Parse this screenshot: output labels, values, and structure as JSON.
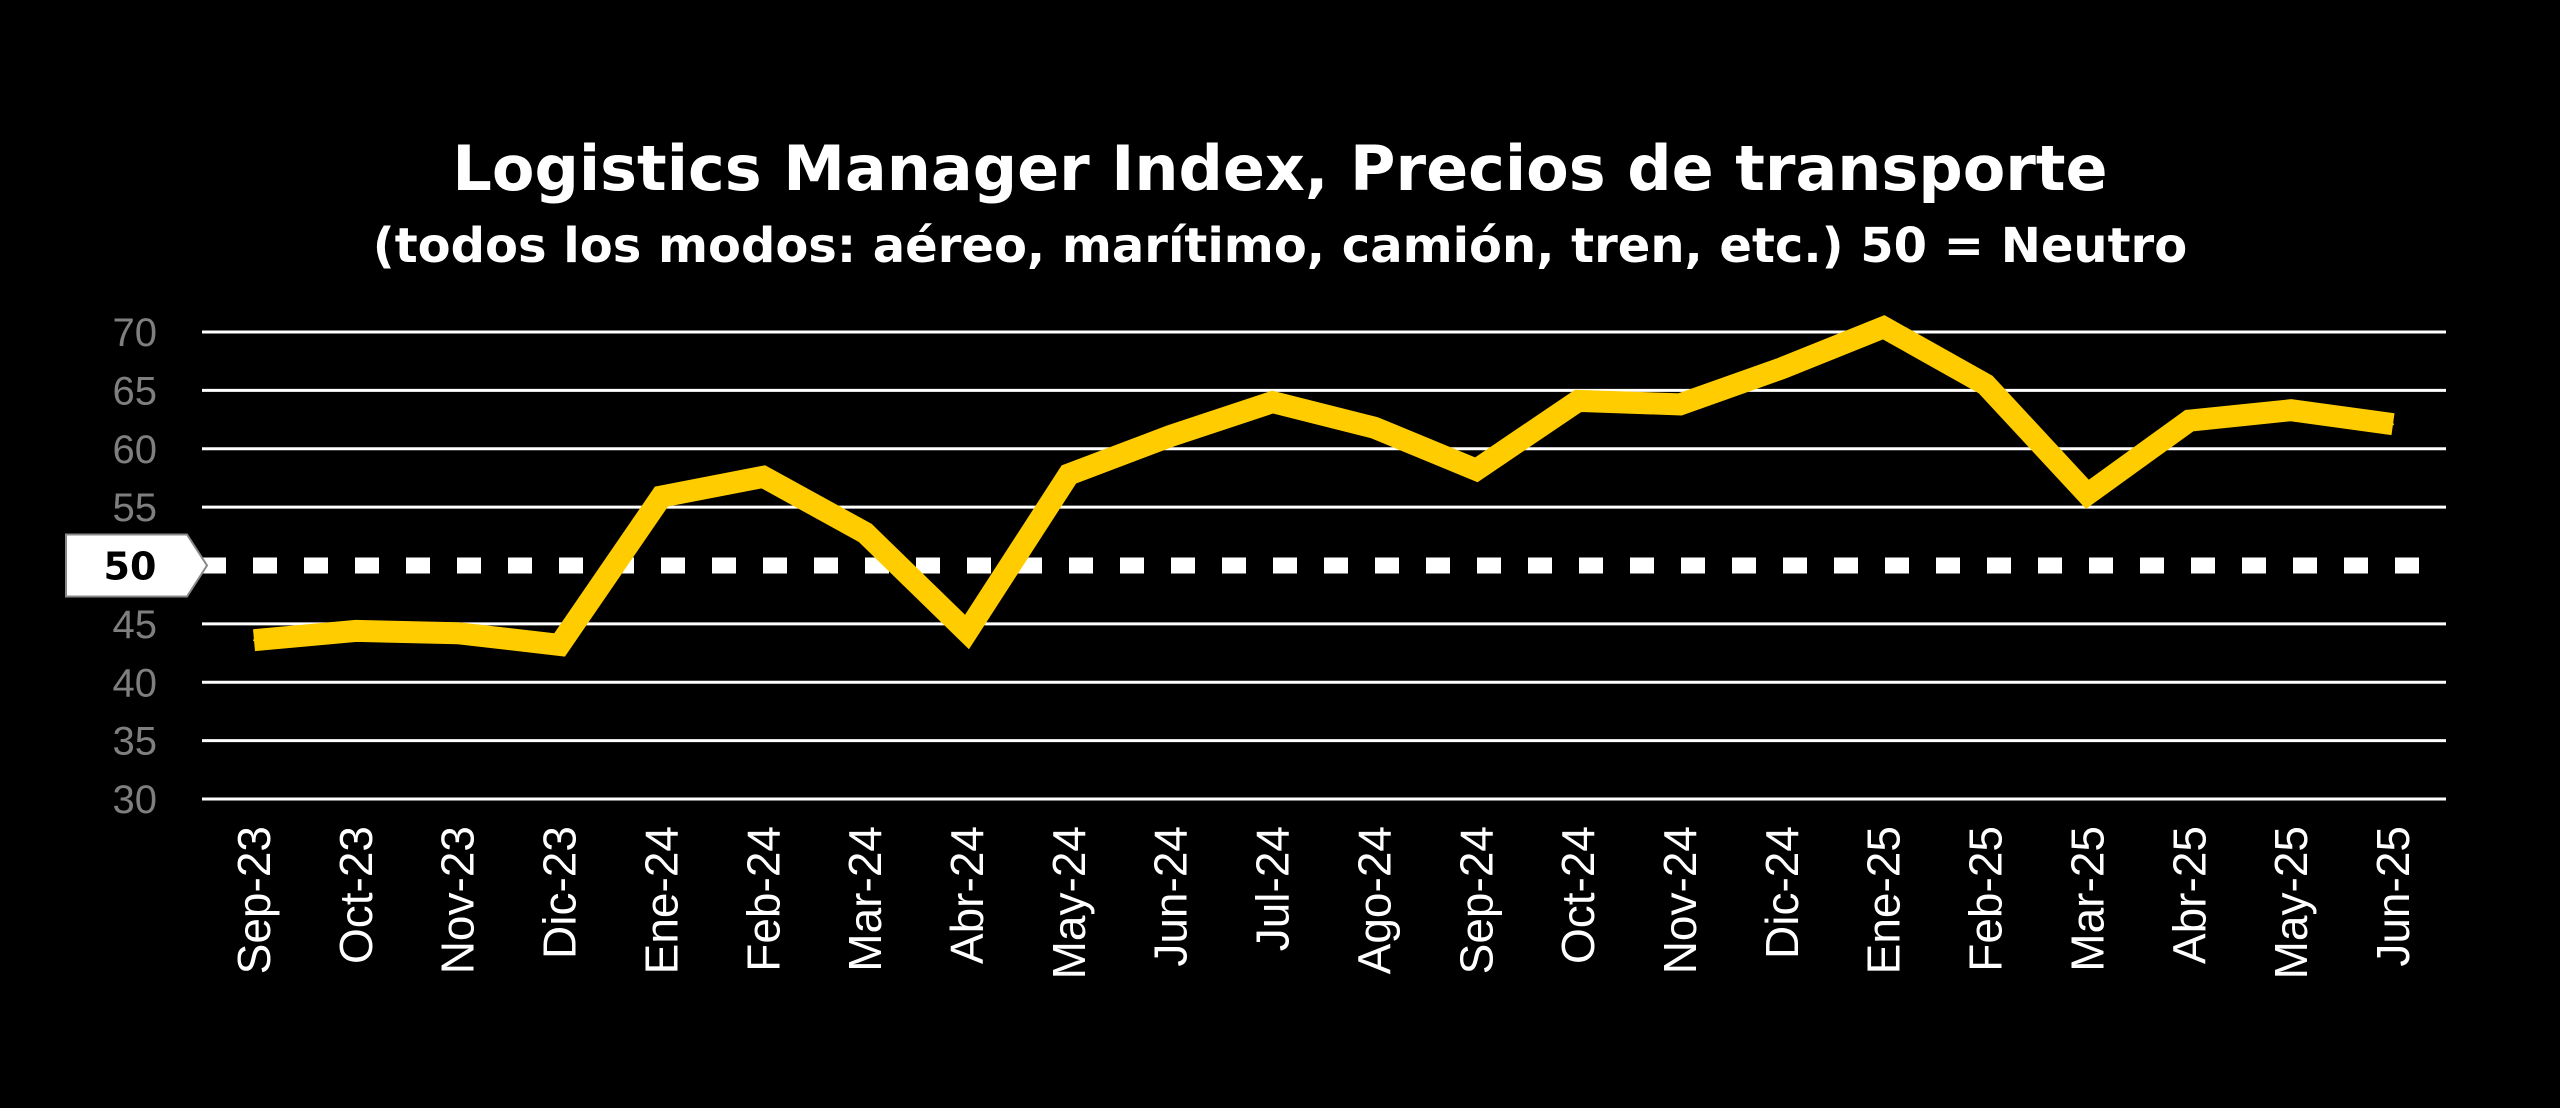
{
  "chart_data": {
    "type": "line",
    "title": "Logistics Manager Index, Precios de transporte",
    "subtitle": "(todos los modos: aéreo, marítimo, camión, tren, etc.) 50 = Neutro",
    "xlabel": "",
    "ylabel": "",
    "ylim": [
      30,
      70
    ],
    "yticks": [
      30,
      35,
      40,
      45,
      50,
      55,
      60,
      65,
      70
    ],
    "grid": true,
    "legend": "none",
    "reference_line": {
      "value": 50,
      "label": "50",
      "style": "dashed",
      "color": "#ffffff"
    },
    "categories": [
      "Sep-23",
      "Oct-23",
      "Nov-23",
      "Dic-23",
      "Ene-24",
      "Feb-24",
      "Mar-24",
      "Abr-24",
      "May-24",
      "Jun-24",
      "Jul-24",
      "Ago-24",
      "Sep-24",
      "Oct-24",
      "Nov-24",
      "Dic-24",
      "Ene-25",
      "Feb-25",
      "Mar-25",
      "Abr-25",
      "May-25",
      "Jun-25"
    ],
    "series": [
      {
        "values": [
          43.6,
          44.4,
          44.2,
          43.2,
          55.9,
          57.6,
          52.8,
          44.3,
          57.8,
          61.1,
          64.0,
          61.8,
          58.2,
          64.1,
          63.8,
          66.9,
          70.4,
          65.5,
          56.1,
          62.4,
          63.3,
          62.1
        ],
        "color": "#FFCC00"
      }
    ]
  }
}
